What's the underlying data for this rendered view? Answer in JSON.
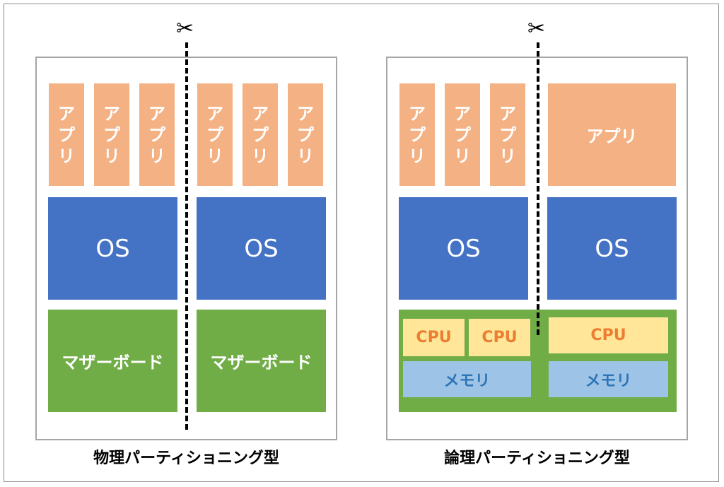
{
  "app_label": "アプリ",
  "os_label": "OS",
  "motherboard_label": "マザーボード",
  "cpu_label": "CPU",
  "memory_label": "メモリ",
  "scissors_icon": "scissors-icon",
  "captions": {
    "physical": "物理パーティショニング型",
    "logical": "論理パーティショニング型"
  },
  "colors": {
    "app": "#f4b183",
    "os": "#4472c4",
    "motherboard": "#70ad47",
    "cpu": "#ffe699",
    "memory": "#9dc3e6"
  }
}
